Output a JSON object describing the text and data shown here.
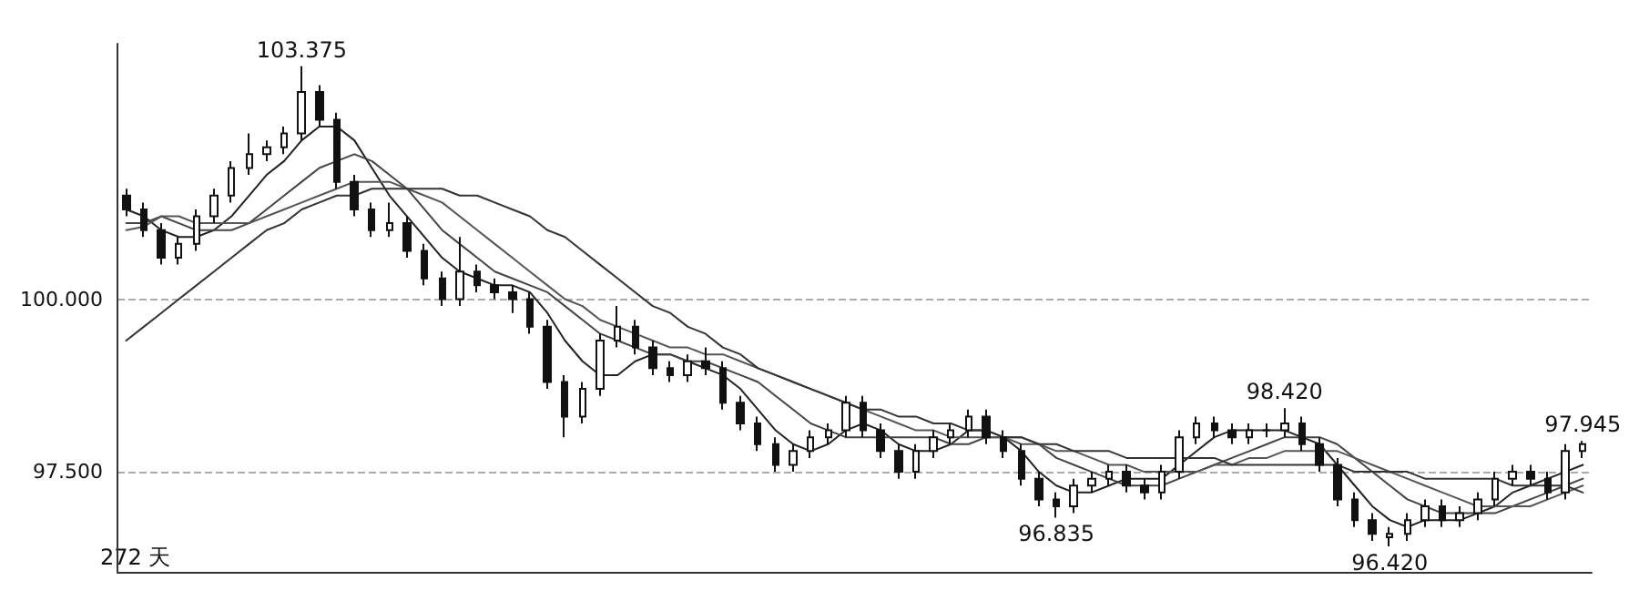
{
  "chart_data": {
    "type": "candlestick",
    "categories": [
      null,
      null,
      null,
      null,
      null,
      null,
      null,
      null,
      null,
      null,
      null,
      null,
      null,
      null,
      null,
      null,
      null,
      null,
      null,
      null,
      null,
      null,
      null,
      null,
      null,
      null,
      null,
      null,
      null,
      null,
      null,
      null,
      null,
      null,
      null,
      null,
      null,
      null,
      null,
      null,
      null,
      null,
      null,
      null,
      null,
      null,
      null,
      null,
      null,
      null,
      null,
      null,
      null,
      null,
      null,
      null,
      null,
      null,
      null,
      null,
      null,
      null,
      null,
      null,
      null,
      null,
      null,
      null,
      null,
      null,
      null,
      null,
      null,
      null,
      null,
      null,
      null,
      null,
      null,
      null,
      null,
      null,
      null,
      null
    ],
    "series": [
      {
        "color": "#111111",
        "ohlc": [
          [
            101.5,
            101.6,
            101.2,
            101.3
          ],
          [
            101.3,
            101.4,
            100.9,
            101.0
          ],
          [
            101.0,
            101.1,
            100.5,
            100.6
          ],
          [
            100.6,
            100.9,
            100.5,
            100.8
          ],
          [
            100.8,
            101.3,
            100.7,
            101.2
          ],
          [
            101.2,
            101.6,
            101.1,
            101.5
          ],
          [
            101.5,
            102.0,
            101.4,
            101.9
          ],
          [
            101.9,
            102.4,
            101.8,
            102.1
          ],
          [
            102.1,
            102.3,
            102.0,
            102.2
          ],
          [
            102.2,
            102.5,
            102.1,
            102.4
          ],
          [
            102.4,
            103.375,
            102.3,
            103.0
          ],
          [
            103.0,
            103.1,
            102.5,
            102.6
          ],
          [
            102.6,
            102.7,
            101.6,
            101.7
          ],
          [
            101.7,
            101.8,
            101.2,
            101.3
          ],
          [
            101.3,
            101.4,
            100.9,
            101.0
          ],
          [
            101.0,
            101.4,
            100.9,
            101.1
          ],
          [
            101.1,
            101.2,
            100.6,
            100.7
          ],
          [
            100.7,
            100.8,
            100.2,
            100.3
          ],
          [
            100.3,
            100.4,
            99.9,
            100.0
          ],
          [
            100.0,
            100.9,
            99.9,
            100.4
          ],
          [
            100.4,
            100.5,
            100.1,
            100.2
          ],
          [
            100.2,
            100.3,
            100.0,
            100.1
          ],
          [
            100.1,
            100.2,
            99.8,
            100.0
          ],
          [
            100.0,
            100.1,
            99.5,
            99.6
          ],
          [
            99.6,
            99.7,
            98.7,
            98.8
          ],
          [
            98.8,
            98.9,
            98.0,
            98.3
          ],
          [
            98.3,
            98.8,
            98.2,
            98.7
          ],
          [
            98.7,
            99.5,
            98.6,
            99.4
          ],
          [
            99.4,
            99.9,
            99.3,
            99.6
          ],
          [
            99.6,
            99.7,
            99.2,
            99.3
          ],
          [
            99.3,
            99.4,
            98.9,
            99.0
          ],
          [
            99.0,
            99.1,
            98.8,
            98.9
          ],
          [
            98.9,
            99.2,
            98.8,
            99.1
          ],
          [
            99.1,
            99.3,
            98.9,
            99.0
          ],
          [
            99.0,
            99.1,
            98.4,
            98.5
          ],
          [
            98.5,
            98.6,
            98.1,
            98.2
          ],
          [
            98.2,
            98.3,
            97.8,
            97.9
          ],
          [
            97.9,
            98.0,
            97.5,
            97.6
          ],
          [
            97.6,
            97.9,
            97.5,
            97.8
          ],
          [
            97.8,
            98.1,
            97.7,
            98.0
          ],
          [
            98.0,
            98.2,
            97.9,
            98.1
          ],
          [
            98.1,
            98.6,
            98.0,
            98.5
          ],
          [
            98.5,
            98.6,
            98.0,
            98.1
          ],
          [
            98.1,
            98.2,
            97.7,
            97.8
          ],
          [
            97.8,
            97.9,
            97.4,
            97.5
          ],
          [
            97.5,
            97.9,
            97.4,
            97.8
          ],
          [
            97.8,
            98.1,
            97.7,
            98.0
          ],
          [
            98.0,
            98.2,
            97.9,
            98.1
          ],
          [
            98.1,
            98.4,
            98.0,
            98.3
          ],
          [
            98.3,
            98.4,
            97.9,
            98.0
          ],
          [
            98.0,
            98.1,
            97.7,
            97.8
          ],
          [
            97.8,
            97.9,
            97.3,
            97.4
          ],
          [
            97.4,
            97.5,
            97.0,
            97.1
          ],
          [
            97.1,
            97.2,
            96.835,
            97.0
          ],
          [
            97.0,
            97.4,
            96.9,
            97.3
          ],
          [
            97.3,
            97.5,
            97.2,
            97.4
          ],
          [
            97.4,
            97.6,
            97.3,
            97.5
          ],
          [
            97.5,
            97.6,
            97.2,
            97.3
          ],
          [
            97.3,
            97.4,
            97.1,
            97.2
          ],
          [
            97.2,
            97.6,
            97.1,
            97.5
          ],
          [
            97.5,
            98.1,
            97.4,
            98.0
          ],
          [
            98.0,
            98.3,
            97.9,
            98.2
          ],
          [
            98.2,
            98.3,
            98.0,
            98.1
          ],
          [
            98.1,
            98.2,
            97.9,
            98.0
          ],
          [
            98.0,
            98.2,
            97.9,
            98.1
          ],
          [
            98.1,
            98.2,
            98.0,
            98.1
          ],
          [
            98.1,
            98.42,
            98.0,
            98.2
          ],
          [
            98.2,
            98.3,
            97.8,
            97.9
          ],
          [
            97.9,
            98.0,
            97.5,
            97.6
          ],
          [
            97.6,
            97.7,
            97.0,
            97.1
          ],
          [
            97.1,
            97.2,
            96.7,
            96.8
          ],
          [
            96.8,
            96.9,
            96.5,
            96.6
          ],
          [
            96.55,
            96.7,
            96.42,
            96.6
          ],
          [
            96.6,
            96.9,
            96.5,
            96.8
          ],
          [
            96.8,
            97.1,
            96.7,
            97.0
          ],
          [
            97.0,
            97.1,
            96.7,
            96.8
          ],
          [
            96.8,
            97.0,
            96.7,
            96.9
          ],
          [
            96.9,
            97.2,
            96.8,
            97.1
          ],
          [
            97.1,
            97.5,
            97.0,
            97.4
          ],
          [
            97.4,
            97.6,
            97.3,
            97.5
          ],
          [
            97.5,
            97.6,
            97.3,
            97.4
          ],
          [
            97.4,
            97.5,
            97.1,
            97.2
          ],
          [
            97.2,
            97.9,
            97.1,
            97.8
          ],
          [
            97.8,
            97.945,
            97.7,
            97.9
          ]
        ]
      },
      {
        "type": "line",
        "color": "#222222",
        "values": [
          101.3,
          101.2,
          101.0,
          100.9,
          100.9,
          101.0,
          101.2,
          101.5,
          101.8,
          102.0,
          102.3,
          102.5,
          102.5,
          102.3,
          101.9,
          101.5,
          101.2,
          100.9,
          100.6,
          100.4,
          100.3,
          100.2,
          100.2,
          100.1,
          99.8,
          99.4,
          99.1,
          98.9,
          98.9,
          99.1,
          99.2,
          99.2,
          99.1,
          99.0,
          98.9,
          98.7,
          98.4,
          98.1,
          97.9,
          97.8,
          97.9,
          98.1,
          98.2,
          98.1,
          97.9,
          97.8,
          97.8,
          97.9,
          98.1,
          98.1,
          98.0,
          97.8,
          97.5,
          97.3,
          97.2,
          97.2,
          97.3,
          97.4,
          97.4,
          97.4,
          97.6,
          97.8,
          98.0,
          98.1,
          98.1,
          98.1,
          98.1,
          98.0,
          97.9,
          97.6,
          97.3,
          97.0,
          96.8,
          96.7,
          96.8,
          96.8,
          96.8,
          96.9,
          97.0,
          97.2,
          97.3,
          97.4,
          97.5,
          97.6
        ]
      },
      {
        "type": "line",
        "color": "#444444",
        "values": [
          101.1,
          101.1,
          101.2,
          101.1,
          101.0,
          101.0,
          101.0,
          101.1,
          101.3,
          101.5,
          101.7,
          101.9,
          102.0,
          102.1,
          102.0,
          101.8,
          101.6,
          101.3,
          101.0,
          100.8,
          100.6,
          100.4,
          100.3,
          100.2,
          100.1,
          99.9,
          99.7,
          99.5,
          99.4,
          99.3,
          99.2,
          99.2,
          99.1,
          99.1,
          99.0,
          98.9,
          98.8,
          98.6,
          98.4,
          98.2,
          98.1,
          98.0,
          98.0,
          98.0,
          98.0,
          98.0,
          98.0,
          97.9,
          97.9,
          98.0,
          98.0,
          98.0,
          97.9,
          97.7,
          97.6,
          97.5,
          97.4,
          97.3,
          97.3,
          97.3,
          97.4,
          97.5,
          97.6,
          97.7,
          97.8,
          97.9,
          98.0,
          98.0,
          98.0,
          97.9,
          97.7,
          97.5,
          97.3,
          97.1,
          97.0,
          96.9,
          96.9,
          96.9,
          96.9,
          97.0,
          97.1,
          97.2,
          97.3,
          97.4
        ]
      },
      {
        "type": "line",
        "color": "#555555",
        "values": [
          101.0,
          101.05,
          101.2,
          101.2,
          101.1,
          101.1,
          101.1,
          101.1,
          101.2,
          101.3,
          101.4,
          101.5,
          101.6,
          101.7,
          101.7,
          101.7,
          101.6,
          101.5,
          101.4,
          101.2,
          101.0,
          100.8,
          100.6,
          100.4,
          100.2,
          100.0,
          99.9,
          99.7,
          99.6,
          99.5,
          99.4,
          99.3,
          99.3,
          99.2,
          99.2,
          99.1,
          99.0,
          98.9,
          98.8,
          98.7,
          98.6,
          98.5,
          98.4,
          98.3,
          98.2,
          98.1,
          98.1,
          98.0,
          98.0,
          98.0,
          98.0,
          97.9,
          97.9,
          97.8,
          97.8,
          97.7,
          97.6,
          97.6,
          97.5,
          97.5,
          97.5,
          97.5,
          97.6,
          97.6,
          97.7,
          97.7,
          97.8,
          97.8,
          97.8,
          97.8,
          97.7,
          97.6,
          97.5,
          97.4,
          97.3,
          97.2,
          97.1,
          97.0,
          97.0,
          97.0,
          97.0,
          97.1,
          97.2,
          97.3
        ]
      },
      {
        "type": "line",
        "color": "#333333",
        "values": [
          99.4,
          99.6,
          99.8,
          100.0,
          100.2,
          100.4,
          100.6,
          100.8,
          101.0,
          101.1,
          101.3,
          101.4,
          101.5,
          101.5,
          101.6,
          101.6,
          101.6,
          101.6,
          101.6,
          101.5,
          101.5,
          101.4,
          101.3,
          101.2,
          101.0,
          100.9,
          100.7,
          100.5,
          100.3,
          100.1,
          99.9,
          99.8,
          99.6,
          99.5,
          99.3,
          99.2,
          99.0,
          98.9,
          98.8,
          98.7,
          98.6,
          98.5,
          98.4,
          98.4,
          98.3,
          98.3,
          98.2,
          98.2,
          98.1,
          98.1,
          98.0,
          98.0,
          97.9,
          97.9,
          97.8,
          97.8,
          97.8,
          97.7,
          97.7,
          97.7,
          97.7,
          97.7,
          97.7,
          97.6,
          97.6,
          97.6,
          97.6,
          97.6,
          97.6,
          97.6,
          97.5,
          97.5,
          97.5,
          97.5,
          97.4,
          97.4,
          97.4,
          97.4,
          97.4,
          97.3,
          97.3,
          97.3,
          97.3,
          97.2
        ]
      }
    ],
    "ylim": [
      96.05,
      103.7
    ],
    "yticks": [
      {
        "value": 100,
        "label": "100.000"
      },
      {
        "value": 97.5,
        "label": "97.500"
      }
    ],
    "tick_labels": "y",
    "grid": "y",
    "marker": "none",
    "line_style": "solid",
    "annotations": [
      {
        "text": "103.375",
        "y": 103.375
      },
      {
        "text": "96.835",
        "y": 96.835
      },
      {
        "text": "98.420",
        "y": 98.42
      },
      {
        "text": "96.420",
        "y": 96.42
      },
      {
        "text": "97.945",
        "y": 97.945
      },
      "272 天"
    ]
  }
}
